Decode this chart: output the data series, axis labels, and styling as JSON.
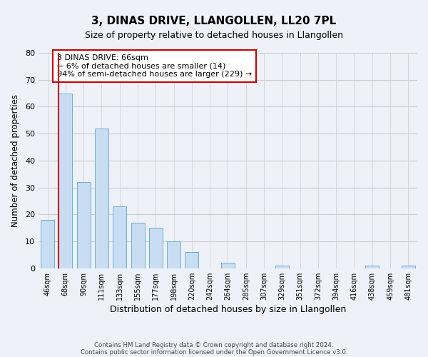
{
  "title": "3, DINAS DRIVE, LLANGOLLEN, LL20 7PL",
  "subtitle": "Size of property relative to detached houses in Llangollen",
  "xlabel": "Distribution of detached houses by size in Llangollen",
  "ylabel": "Number of detached properties",
  "bar_labels": [
    "46sqm",
    "68sqm",
    "90sqm",
    "111sqm",
    "133sqm",
    "155sqm",
    "177sqm",
    "198sqm",
    "220sqm",
    "242sqm",
    "264sqm",
    "285sqm",
    "307sqm",
    "329sqm",
    "351sqm",
    "372sqm",
    "394sqm",
    "416sqm",
    "438sqm",
    "459sqm",
    "481sqm"
  ],
  "bar_values": [
    18,
    65,
    32,
    52,
    23,
    17,
    15,
    10,
    6,
    0,
    2,
    0,
    0,
    1,
    0,
    0,
    0,
    0,
    1,
    0,
    1
  ],
  "bar_color": "#c9ddf2",
  "bar_edge_color": "#6baed6",
  "bar_edge_width": 0.7,
  "vline_color": "#cc0000",
  "annotation_text": "3 DINAS DRIVE: 66sqm\n← 6% of detached houses are smaller (14)\n94% of semi-detached houses are larger (229) →",
  "annotation_box_color": "#ffffff",
  "annotation_box_edge_color": "#cc0000",
  "ylim": [
    0,
    80
  ],
  "yticks": [
    0,
    10,
    20,
    30,
    40,
    50,
    60,
    70,
    80
  ],
  "grid_color": "#cccccc",
  "bg_color": "#eef2f8",
  "footer_line1": "Contains HM Land Registry data © Crown copyright and database right 2024.",
  "footer_line2": "Contains public sector information licensed under the Open Government Licence v3.0."
}
